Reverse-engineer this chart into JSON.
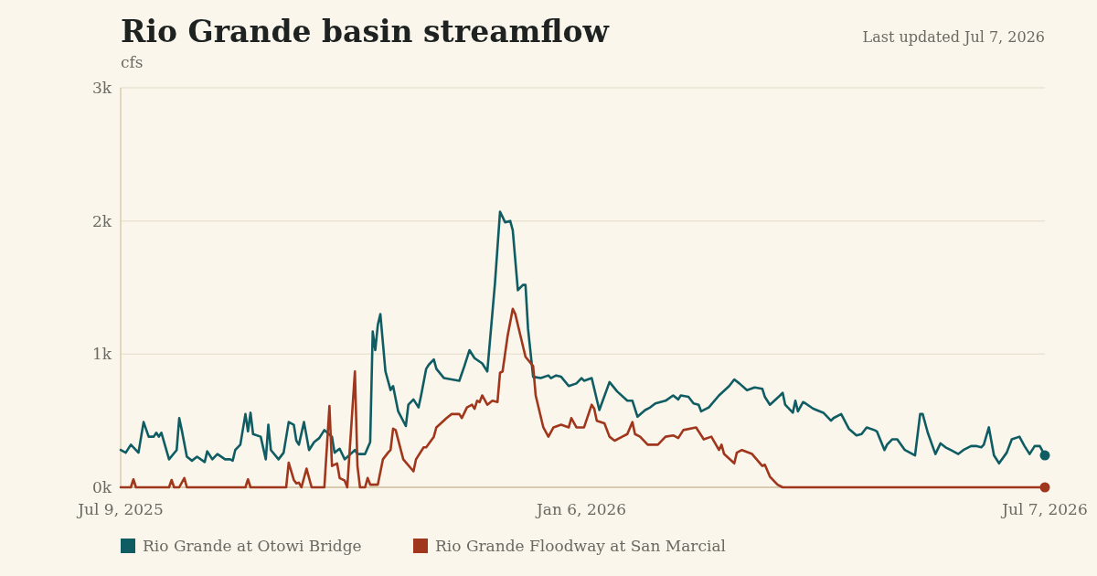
{
  "chart_data": {
    "type": "line",
    "title": "Rio Grande basin streamflow",
    "ylabel": "cfs",
    "annotations": [
      "Last updated Jul 7, 2026"
    ],
    "xlim": [
      "2025-07-09",
      "2026-07-07"
    ],
    "xticks": [
      {
        "value": "2025-07-09",
        "label": "Jul 9, 2025"
      },
      {
        "value": "2026-01-06",
        "label": "Jan 6, 2026"
      },
      {
        "value": "2026-07-07",
        "label": "Jul 7, 2026"
      }
    ],
    "ylim": [
      0,
      3000
    ],
    "yticks": [
      {
        "value": 0,
        "label": "0k"
      },
      {
        "value": 1000,
        "label": "1k"
      },
      {
        "value": 2000,
        "label": "2k"
      },
      {
        "value": 3000,
        "label": "3k"
      }
    ],
    "grid": "y",
    "legend": "bottom",
    "series": [
      {
        "name": "Rio Grande at Otowi Bridge",
        "color": "#0f5c63",
        "x": [
          "2025-07-09",
          "2025-07-11",
          "2025-07-13",
          "2025-07-16",
          "2025-07-18",
          "2025-07-20",
          "2025-07-22",
          "2025-07-23",
          "2025-07-24",
          "2025-07-25",
          "2025-07-28",
          "2025-07-31",
          "2025-08-01",
          "2025-08-02",
          "2025-08-04",
          "2025-08-06",
          "2025-08-08",
          "2025-08-11",
          "2025-08-12",
          "2025-08-14",
          "2025-08-16",
          "2025-08-19",
          "2025-08-21",
          "2025-08-22",
          "2025-08-23",
          "2025-08-25",
          "2025-08-27",
          "2025-08-28",
          "2025-08-29",
          "2025-08-30",
          "2025-09-02",
          "2025-09-04",
          "2025-09-05",
          "2025-09-06",
          "2025-09-09",
          "2025-09-11",
          "2025-09-13",
          "2025-09-15",
          "2025-09-16",
          "2025-09-17",
          "2025-09-19",
          "2025-09-21",
          "2025-09-23",
          "2025-09-25",
          "2025-09-27",
          "2025-09-30",
          "2025-10-01",
          "2025-10-03",
          "2025-10-05",
          "2025-10-09",
          "2025-10-10",
          "2025-10-13",
          "2025-10-15",
          "2025-10-16",
          "2025-10-17",
          "2025-10-18",
          "2025-10-19",
          "2025-10-21",
          "2025-10-23",
          "2025-10-24",
          "2025-10-26",
          "2025-10-29",
          "2025-10-30",
          "2025-11-01",
          "2025-11-03",
          "2025-11-04",
          "2025-11-06",
          "2025-11-07",
          "2025-11-09",
          "2025-11-10",
          "2025-11-13",
          "2025-11-16",
          "2025-11-19",
          "2025-11-21",
          "2025-11-23",
          "2025-11-25",
          "2025-11-28",
          "2025-11-30",
          "2025-12-03",
          "2025-12-05",
          "2025-12-07",
          "2025-12-09",
          "2025-12-10",
          "2025-12-12",
          "2025-12-14",
          "2025-12-15",
          "2025-12-16",
          "2025-12-18",
          "2025-12-21",
          "2025-12-24",
          "2025-12-25",
          "2025-12-27",
          "2025-12-29",
          "2026-01-01",
          "2026-01-04",
          "2026-01-06",
          "2026-01-07",
          "2026-01-10",
          "2026-01-13",
          "2026-01-17",
          "2026-01-20",
          "2026-01-24",
          "2026-01-26",
          "2026-01-28",
          "2026-01-31",
          "2026-02-02",
          "2026-02-04",
          "2026-02-08",
          "2026-02-11",
          "2026-02-13",
          "2026-02-14",
          "2026-02-17",
          "2026-02-19",
          "2026-02-21",
          "2026-02-22",
          "2026-02-25",
          "2026-03-01",
          "2026-03-05",
          "2026-03-07",
          "2026-03-09",
          "2026-03-12",
          "2026-03-15",
          "2026-03-18",
          "2026-03-19",
          "2026-03-21",
          "2026-03-25",
          "2026-03-26",
          "2026-03-27",
          "2026-03-30",
          "2026-03-31",
          "2026-04-01",
          "2026-04-03",
          "2026-04-04",
          "2026-04-07",
          "2026-04-11",
          "2026-04-14",
          "2026-04-15",
          "2026-04-18",
          "2026-04-21",
          "2026-04-24",
          "2026-04-26",
          "2026-04-28",
          "2026-05-01",
          "2026-05-02",
          "2026-05-05",
          "2026-05-06",
          "2026-05-08",
          "2026-05-10",
          "2026-05-13",
          "2026-05-17",
          "2026-05-19",
          "2026-05-20",
          "2026-05-22",
          "2026-05-25",
          "2026-05-27",
          "2026-05-29",
          "2026-05-31",
          "2026-06-03",
          "2026-06-05",
          "2026-06-08",
          "2026-06-10",
          "2026-06-12",
          "2026-06-13",
          "2026-06-15",
          "2026-06-17",
          "2026-06-19",
          "2026-06-22",
          "2026-06-24",
          "2026-06-27",
          "2026-06-29",
          "2026-07-01",
          "2026-07-03",
          "2026-07-05",
          "2026-07-07"
        ],
        "values": [
          280,
          260,
          320,
          260,
          490,
          380,
          380,
          410,
          380,
          410,
          210,
          280,
          520,
          430,
          230,
          200,
          230,
          190,
          270,
          210,
          250,
          210,
          210,
          200,
          280,
          320,
          550,
          420,
          560,
          400,
          380,
          210,
          470,
          280,
          210,
          260,
          490,
          470,
          350,
          320,
          490,
          280,
          340,
          370,
          430,
          380,
          260,
          290,
          210,
          280,
          250,
          250,
          340,
          1170,
          1030,
          1220,
          1300,
          870,
          730,
          760,
          570,
          460,
          620,
          660,
          600,
          690,
          890,
          920,
          960,
          890,
          820,
          810,
          800,
          910,
          1030,
          970,
          930,
          870,
          1530,
          2070,
          1990,
          2000,
          1930,
          1480,
          1520,
          1520,
          1190,
          830,
          820,
          840,
          820,
          840,
          830,
          760,
          780,
          820,
          800,
          820,
          580,
          790,
          720,
          650,
          650,
          530,
          580,
          600,
          630,
          650,
          690,
          660,
          690,
          680,
          630,
          620,
          570,
          600,
          690,
          760,
          810,
          780,
          730,
          750,
          740,
          680,
          620,
          690,
          710,
          620,
          560,
          650,
          570,
          640,
          630,
          590,
          560,
          500,
          520,
          550,
          440,
          390,
          400,
          450,
          430,
          420,
          280,
          320,
          360,
          360,
          280,
          240,
          550,
          550,
          410,
          250,
          330,
          300,
          280,
          250,
          280,
          310,
          310,
          300,
          320,
          450,
          240,
          180,
          260,
          360,
          380,
          310,
          250,
          310,
          310,
          240
        ]
      },
      {
        "name": "Rio Grande Floodway at San Marcial",
        "color": "#a0361c",
        "x": [
          "2025-07-09",
          "2025-07-13",
          "2025-07-14",
          "2025-07-15",
          "2025-07-28",
          "2025-07-29",
          "2025-07-30",
          "2025-08-01",
          "2025-08-03",
          "2025-08-04",
          "2025-08-27",
          "2025-08-28",
          "2025-08-29",
          "2025-09-12",
          "2025-09-13",
          "2025-09-15",
          "2025-09-16",
          "2025-09-17",
          "2025-09-18",
          "2025-09-20",
          "2025-09-22",
          "2025-09-27",
          "2025-09-29",
          "2025-09-30",
          "2025-10-02",
          "2025-10-03",
          "2025-10-05",
          "2025-10-06",
          "2025-10-09",
          "2025-10-10",
          "2025-10-11",
          "2025-10-13",
          "2025-10-14",
          "2025-10-15",
          "2025-10-18",
          "2025-10-20",
          "2025-10-22",
          "2025-10-23",
          "2025-10-24",
          "2025-10-25",
          "2025-10-28",
          "2025-11-01",
          "2025-11-02",
          "2025-11-05",
          "2025-11-06",
          "2025-11-09",
          "2025-11-10",
          "2025-11-14",
          "2025-11-16",
          "2025-11-19",
          "2025-11-20",
          "2025-11-22",
          "2025-11-24",
          "2025-11-25",
          "2025-11-26",
          "2025-11-27",
          "2025-11-28",
          "2025-11-30",
          "2025-12-02",
          "2025-12-04",
          "2025-12-05",
          "2025-12-06",
          "2025-12-08",
          "2025-12-10",
          "2025-12-11",
          "2025-12-13",
          "2025-12-15",
          "2025-12-18",
          "2025-12-19",
          "2025-12-22",
          "2025-12-24",
          "2025-12-26",
          "2025-12-29",
          "2026-01-01",
          "2026-01-02",
          "2026-01-04",
          "2026-01-07",
          "2026-01-10",
          "2026-01-11",
          "2026-01-12",
          "2026-01-15",
          "2026-01-17",
          "2026-01-19",
          "2026-01-22",
          "2026-01-24",
          "2026-01-26",
          "2026-01-27",
          "2026-01-29",
          "2026-02-01",
          "2026-02-05",
          "2026-02-08",
          "2026-02-11",
          "2026-02-13",
          "2026-02-15",
          "2026-02-20",
          "2026-02-23",
          "2026-02-26",
          "2026-03-01",
          "2026-03-02",
          "2026-03-03",
          "2026-03-07",
          "2026-03-08",
          "2026-03-10",
          "2026-03-14",
          "2026-03-18",
          "2026-03-19",
          "2026-03-21",
          "2026-03-24",
          "2026-03-26",
          "2026-07-07"
        ],
        "values": [
          0,
          0,
          60,
          0,
          0,
          55,
          0,
          0,
          70,
          0,
          0,
          60,
          0,
          0,
          185,
          55,
          30,
          35,
          0,
          140,
          0,
          0,
          610,
          160,
          180,
          70,
          50,
          0,
          870,
          160,
          0,
          0,
          70,
          20,
          20,
          210,
          260,
          280,
          440,
          430,
          210,
          120,
          210,
          300,
          300,
          380,
          450,
          520,
          550,
          550,
          520,
          600,
          620,
          590,
          650,
          640,
          690,
          620,
          650,
          640,
          860,
          870,
          1140,
          1340,
          1300,
          1140,
          980,
          910,
          690,
          450,
          380,
          450,
          470,
          450,
          520,
          450,
          450,
          620,
          590,
          500,
          480,
          380,
          350,
          380,
          400,
          490,
          400,
          380,
          320,
          320,
          380,
          390,
          370,
          430,
          450,
          360,
          380,
          280,
          320,
          250,
          180,
          260,
          280,
          250,
          160,
          170,
          80,
          20,
          0,
          0
        ]
      }
    ]
  }
}
